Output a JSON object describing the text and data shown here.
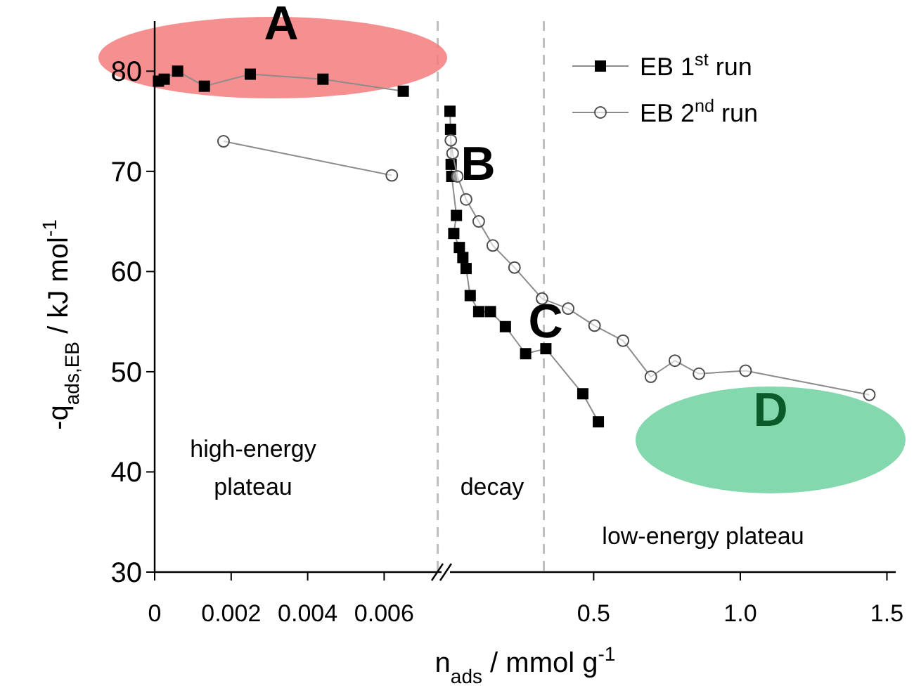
{
  "chart_data": [
    {
      "type": "line",
      "ylabel": "-q$_{ads,EB}$ / kJ mol$^{-1}$",
      "xlim": [
        0,
        0.0075
      ],
      "xticks": [
        0,
        0.002,
        0.004,
        0.006
      ],
      "ylim": [
        30,
        85
      ],
      "yticks": [
        30,
        40,
        50,
        60,
        70,
        80
      ],
      "tick_labels": "xy",
      "legend": false,
      "ref_lines": [
        {
          "axis": "x",
          "value": 0.0074,
          "color": "#bfbfbf",
          "line_style": "dashed"
        }
      ],
      "annotations": [
        "A",
        "high-energy\nplateau"
      ],
      "series": [
        {
          "color": "#000000",
          "marker": "square",
          "x": [
            0.0001,
            0.00025,
            0.0006,
            0.0013,
            0.0025,
            0.0044,
            0.0065
          ],
          "values": [
            79.0,
            79.2,
            80.0,
            78.5,
            79.7,
            79.2,
            78.0
          ]
        },
        {
          "color": "#4d4d4d",
          "marker": "circle",
          "x": [
            0.0018,
            0.0062
          ],
          "values": [
            73.0,
            69.6
          ]
        }
      ]
    },
    {
      "type": "line",
      "xlabel": "n$_{ads}$  / mmol g$^{-1}$",
      "xlim": [
        0.01,
        1.53
      ],
      "xticks": [
        {
          "value": 0.5,
          "label": "0.5"
        },
        {
          "value": 1,
          "label": "1.0"
        },
        {
          "value": 1.5,
          "label": "1.5"
        }
      ],
      "ylim": [
        30,
        85
      ],
      "tick_labels": "x",
      "legend": "top right",
      "ref_lines": [
        {
          "axis": "x",
          "value": 0.33,
          "color": "#bfbfbf",
          "line_style": "dashed"
        }
      ],
      "annotations": [
        "B",
        "C",
        "D",
        "decay",
        "low-energy plateau"
      ],
      "series": [
        {
          "name": "EB 1$^{st}$ run",
          "color": "#000000",
          "marker": "square",
          "x": [
            0.01,
            0.012,
            0.014,
            0.016,
            0.032,
            0.023,
            0.042,
            0.054,
            0.065,
            0.079,
            0.108,
            0.148,
            0.199,
            0.268,
            0.337,
            0.463,
            0.516
          ],
          "values": [
            76.0,
            74.2,
            70.7,
            69.5,
            65.6,
            63.8,
            62.4,
            61.4,
            60.3,
            57.6,
            56.0,
            56.0,
            54.5,
            51.8,
            52.3,
            47.8,
            45.0
          ]
        },
        {
          "name": "EB 2$^{nd}$ run",
          "color": "#4d4d4d",
          "marker": "circle",
          "x": [
            0.013,
            0.019,
            0.035,
            0.065,
            0.108,
            0.156,
            0.23,
            0.324,
            0.413,
            0.503,
            0.6,
            0.695,
            0.777,
            0.859,
            1.018,
            1.44
          ],
          "values": [
            73.1,
            71.8,
            69.5,
            67.2,
            65.0,
            62.6,
            60.4,
            57.3,
            56.3,
            54.6,
            53.1,
            49.5,
            51.1,
            49.8,
            50.1,
            47.7
          ]
        }
      ]
    }
  ]
}
